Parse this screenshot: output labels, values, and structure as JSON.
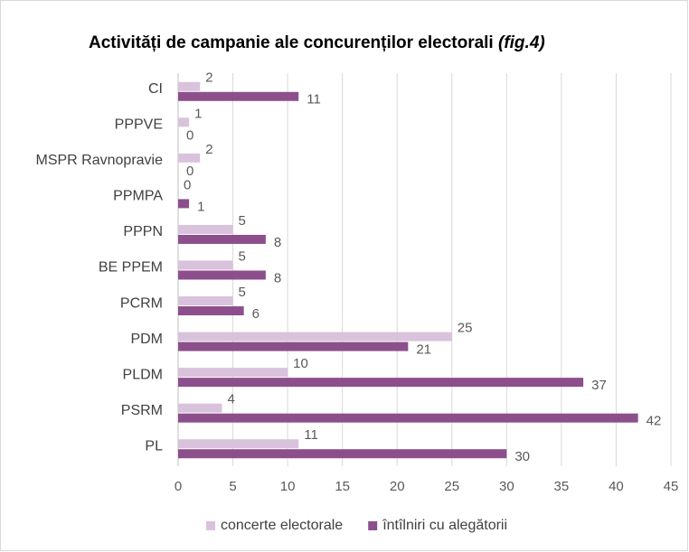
{
  "chart_data": {
    "type": "barh",
    "title": "Activități de campanie ale concurenților electorali",
    "title_note": "(fig.4)",
    "categories": [
      "CI",
      "PPPVE",
      "MSPR Ravnopravie",
      "PPMPA",
      "PPPN",
      "BE PPEM",
      "PCRM",
      "PDM",
      "PLDM",
      "PSRM",
      "PL"
    ],
    "series": [
      {
        "name": "concerte electorale",
        "color": "#d9c2dc",
        "values": [
          2,
          1,
          2,
          0,
          5,
          5,
          5,
          25,
          10,
          4,
          11
        ]
      },
      {
        "name": "întîlniri cu alegătorii",
        "color": "#8c4f8c",
        "values": [
          11,
          0,
          0,
          1,
          8,
          8,
          6,
          21,
          37,
          42,
          30
        ]
      }
    ],
    "xlim": [
      0,
      45
    ],
    "xticks": [
      0,
      5,
      10,
      15,
      20,
      25,
      30,
      35,
      40,
      45
    ],
    "grid": true,
    "legend": "bottom"
  }
}
